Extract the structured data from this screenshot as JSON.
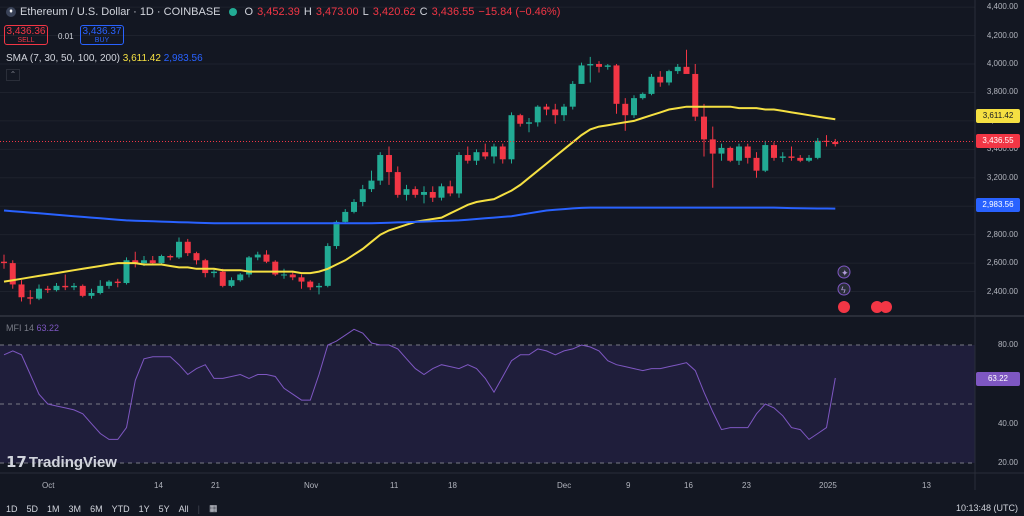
{
  "header": {
    "symbol": "Ethereum / U.S. Dollar · 1D · COINBASE",
    "o_label": "O",
    "o_value": "3,452.39",
    "h_label": "H",
    "h_value": "3,473.00",
    "l_label": "L",
    "l_value": "3,420.62",
    "c_label": "C",
    "c_value": "3,436.55",
    "change": "−15.84 (−0.46%)"
  },
  "trade": {
    "sell_price": "3,436.36",
    "sell_label": "SELL",
    "spread": "0.01",
    "buy_price": "3,436.37",
    "buy_label": "BUY"
  },
  "sma_legend": {
    "label": "SMA (7, 30, 50, 100, 200)",
    "v1": "3,611.42",
    "v2": "2,983.56"
  },
  "mfi_legend": {
    "label": "MFI 14",
    "value": "63.22"
  },
  "price_axis": [
    "4,400.00",
    "4,200.00",
    "4,000.00",
    "3,800.00",
    "3,600.00",
    "3,400.00",
    "3,200.00",
    "3,000.00",
    "2,800.00",
    "2,600.00",
    "2,400.00"
  ],
  "price_labels": {
    "sma_yellow": "3,611.42",
    "last": "3,436.55",
    "sma_blue": "2,983.56"
  },
  "mfi_axis": [
    "80.00",
    "60.00",
    "40.00",
    "20.00"
  ],
  "mfi_label": "63.22",
  "x_axis": [
    "Oct",
    "14",
    "21",
    "Nov",
    "11",
    "18",
    "Dec",
    "9",
    "16",
    "23",
    "2025",
    "13"
  ],
  "timeframes": [
    "1D",
    "5D",
    "1M",
    "3M",
    "6M",
    "YTD",
    "1Y",
    "5Y",
    "All"
  ],
  "clock": "10:13:48 (UTC)",
  "brand": "TradingView",
  "colors": {
    "up": "#22ab94",
    "down": "#f23645",
    "sma_yellow": "#f5e042",
    "sma_blue": "#2962ff",
    "mfi": "#7e57c2",
    "bg": "#131722"
  },
  "chart_data": [
    {
      "type": "candlestick",
      "title": "Ethereum / U.S. Dollar · 1D · COINBASE",
      "x": [
        "Sep 30",
        "Oct 1",
        "Oct 2",
        "Oct 3",
        "Oct 4",
        "Oct 5",
        "Oct 6",
        "Oct 7",
        "Oct 8",
        "Oct 9",
        "Oct 10",
        "Oct 11",
        "Oct 12",
        "Oct 13",
        "Oct 14",
        "Oct 15",
        "Oct 16",
        "Oct 17",
        "Oct 18",
        "Oct 19",
        "Oct 20",
        "Oct 21",
        "Oct 22",
        "Oct 23",
        "Oct 24",
        "Oct 25",
        "Oct 26",
        "Oct 27",
        "Oct 28",
        "Oct 29",
        "Oct 30",
        "Oct 31",
        "Nov 1",
        "Nov 2",
        "Nov 3",
        "Nov 4",
        "Nov 5",
        "Nov 6",
        "Nov 7",
        "Nov 8",
        "Nov 9",
        "Nov 10",
        "Nov 11",
        "Nov 12",
        "Nov 13",
        "Nov 14",
        "Nov 15",
        "Nov 16",
        "Nov 17",
        "Nov 18",
        "Nov 19",
        "Nov 20",
        "Nov 21",
        "Nov 22",
        "Nov 23",
        "Nov 24",
        "Nov 25",
        "Nov 26",
        "Nov 27",
        "Nov 28",
        "Nov 29",
        "Nov 30",
        "Dec 1",
        "Dec 2",
        "Dec 3",
        "Dec 4",
        "Dec 5",
        "Dec 6",
        "Dec 7",
        "Dec 8",
        "Dec 9",
        "Dec 10",
        "Dec 11",
        "Dec 12",
        "Dec 13",
        "Dec 14",
        "Dec 15",
        "Dec 16",
        "Dec 17",
        "Dec 18",
        "Dec 19",
        "Dec 20",
        "Dec 21",
        "Dec 22",
        "Dec 23",
        "Dec 24",
        "Dec 25",
        "Dec 26",
        "Dec 27",
        "Dec 28",
        "Dec 29",
        "Dec 30",
        "Dec 31",
        "Jan 1",
        "Jan 2",
        "Jan 3"
      ],
      "ohlc": [
        [
          2610,
          2660,
          2560,
          2600
        ],
        [
          2600,
          2620,
          2420,
          2450
        ],
        [
          2450,
          2480,
          2330,
          2360
        ],
        [
          2360,
          2410,
          2310,
          2350
        ],
        [
          2350,
          2450,
          2340,
          2420
        ],
        [
          2420,
          2440,
          2390,
          2410
        ],
        [
          2410,
          2460,
          2400,
          2440
        ],
        [
          2440,
          2520,
          2410,
          2430
        ],
        [
          2430,
          2460,
          2410,
          2440
        ],
        [
          2440,
          2450,
          2360,
          2370
        ],
        [
          2370,
          2420,
          2350,
          2390
        ],
        [
          2390,
          2480,
          2380,
          2440
        ],
        [
          2440,
          2480,
          2420,
          2470
        ],
        [
          2470,
          2490,
          2430,
          2460
        ],
        [
          2460,
          2640,
          2450,
          2620
        ],
        [
          2620,
          2680,
          2570,
          2600
        ],
        [
          2600,
          2650,
          2580,
          2620
        ],
        [
          2620,
          2650,
          2590,
          2600
        ],
        [
          2600,
          2660,
          2590,
          2650
        ],
        [
          2650,
          2660,
          2620,
          2640
        ],
        [
          2640,
          2780,
          2630,
          2750
        ],
        [
          2750,
          2770,
          2650,
          2670
        ],
        [
          2670,
          2680,
          2590,
          2620
        ],
        [
          2620,
          2630,
          2500,
          2530
        ],
        [
          2530,
          2560,
          2500,
          2540
        ],
        [
          2540,
          2560,
          2430,
          2440
        ],
        [
          2440,
          2500,
          2430,
          2480
        ],
        [
          2480,
          2530,
          2470,
          2520
        ],
        [
          2520,
          2650,
          2500,
          2640
        ],
        [
          2640,
          2680,
          2620,
          2660
        ],
        [
          2660,
          2690,
          2600,
          2610
        ],
        [
          2610,
          2620,
          2510,
          2520
        ],
        [
          2520,
          2560,
          2490,
          2520
        ],
        [
          2520,
          2540,
          2480,
          2500
        ],
        [
          2500,
          2520,
          2420,
          2470
        ],
        [
          2470,
          2480,
          2410,
          2430
        ],
        [
          2430,
          2460,
          2380,
          2440
        ],
        [
          2440,
          2740,
          2430,
          2720
        ],
        [
          2720,
          2900,
          2700,
          2890
        ],
        [
          2890,
          2980,
          2880,
          2960
        ],
        [
          2960,
          3050,
          2950,
          3030
        ],
        [
          3030,
          3150,
          3000,
          3120
        ],
        [
          3120,
          3250,
          3100,
          3180
        ],
        [
          3180,
          3380,
          3150,
          3360
        ],
        [
          3360,
          3420,
          3150,
          3240
        ],
        [
          3240,
          3280,
          3060,
          3080
        ],
        [
          3080,
          3150,
          3040,
          3120
        ],
        [
          3120,
          3140,
          3060,
          3080
        ],
        [
          3080,
          3140,
          3020,
          3100
        ],
        [
          3100,
          3140,
          3030,
          3060
        ],
        [
          3060,
          3160,
          3040,
          3140
        ],
        [
          3140,
          3180,
          3070,
          3090
        ],
        [
          3090,
          3380,
          3060,
          3360
        ],
        [
          3360,
          3420,
          3300,
          3320
        ],
        [
          3320,
          3400,
          3290,
          3380
        ],
        [
          3380,
          3440,
          3330,
          3350
        ],
        [
          3350,
          3440,
          3300,
          3420
        ],
        [
          3420,
          3440,
          3300,
          3330
        ],
        [
          3330,
          3660,
          3300,
          3640
        ],
        [
          3640,
          3650,
          3560,
          3580
        ],
        [
          3580,
          3620,
          3520,
          3590
        ],
        [
          3590,
          3710,
          3560,
          3700
        ],
        [
          3700,
          3720,
          3640,
          3680
        ],
        [
          3680,
          3720,
          3580,
          3640
        ],
        [
          3640,
          3720,
          3600,
          3700
        ],
        [
          3700,
          3880,
          3680,
          3860
        ],
        [
          3860,
          4010,
          3860,
          3990
        ],
        [
          3990,
          4050,
          3870,
          4000
        ],
        [
          4000,
          4020,
          3940,
          3980
        ],
        [
          3980,
          4000,
          3960,
          3990
        ],
        [
          3990,
          4000,
          3650,
          3720
        ],
        [
          3720,
          3760,
          3530,
          3640
        ],
        [
          3640,
          3780,
          3620,
          3760
        ],
        [
          3760,
          3800,
          3750,
          3790
        ],
        [
          3790,
          3930,
          3780,
          3910
        ],
        [
          3910,
          3950,
          3840,
          3870
        ],
        [
          3870,
          3960,
          3850,
          3950
        ],
        [
          3950,
          4000,
          3930,
          3980
        ],
        [
          3980,
          4100,
          3940,
          3930
        ],
        [
          3930,
          4000,
          3600,
          3630
        ],
        [
          3630,
          3720,
          3350,
          3470
        ],
        [
          3470,
          3560,
          3130,
          3370
        ],
        [
          3370,
          3440,
          3320,
          3410
        ],
        [
          3410,
          3420,
          3310,
          3320
        ],
        [
          3320,
          3440,
          3290,
          3420
        ],
        [
          3420,
          3440,
          3300,
          3340
        ],
        [
          3340,
          3380,
          3200,
          3250
        ],
        [
          3250,
          3460,
          3240,
          3430
        ],
        [
          3430,
          3450,
          3320,
          3340
        ],
        [
          3340,
          3380,
          3310,
          3350
        ],
        [
          3350,
          3420,
          3320,
          3340
        ],
        [
          3340,
          3360,
          3310,
          3320
        ],
        [
          3320,
          3360,
          3310,
          3340
        ],
        [
          3340,
          3480,
          3330,
          3460
        ],
        [
          3460,
          3500,
          3420,
          3452
        ],
        [
          3452,
          3473,
          3420,
          3437
        ]
      ],
      "ylim": [
        2200,
        4450
      ],
      "series": [
        {
          "name": "SMA",
          "values": [
            2470,
            2480,
            2490,
            2500,
            2510,
            2520,
            2530,
            2540,
            2550,
            2560,
            2570,
            2580,
            2590,
            2600,
            2600,
            2600,
            2590,
            2590,
            2590,
            2580,
            2570,
            2570,
            2560,
            2560,
            2560,
            2550,
            2550,
            2550,
            2540,
            2540,
            2540,
            2540,
            2540,
            2540,
            2530,
            2530,
            2540,
            2560,
            2590,
            2620,
            2660,
            2700,
            2750,
            2800,
            2830,
            2850,
            2870,
            2890,
            2900,
            2910,
            2920,
            2950,
            2980,
            3010,
            3030,
            3040,
            3050,
            3080,
            3110,
            3150,
            3200,
            3250,
            3300,
            3350,
            3400,
            3450,
            3500,
            3540,
            3560,
            3570,
            3580,
            3590,
            3600,
            3620,
            3640,
            3660,
            3680,
            3690,
            3700,
            3700,
            3700,
            3700,
            3700,
            3700,
            3690,
            3690,
            3690,
            3680,
            3680,
            3670,
            3660,
            3650,
            3640,
            3630,
            3620,
            3611.42
          ]
        },
        {
          "name": "SMA",
          "values": [
            2970,
            2965,
            2960,
            2955,
            2950,
            2945,
            2940,
            2935,
            2930,
            2925,
            2920,
            2915,
            2910,
            2905,
            2900,
            2898,
            2896,
            2894,
            2892,
            2890,
            2888,
            2886,
            2884,
            2882,
            2880,
            2880,
            2880,
            2880,
            2880,
            2880,
            2880,
            2880,
            2880,
            2880,
            2880,
            2880,
            2880,
            2880,
            2880,
            2880,
            2880,
            2880,
            2880,
            2882,
            2884,
            2886,
            2888,
            2890,
            2892,
            2894,
            2896,
            2898,
            2900,
            2905,
            2910,
            2915,
            2920,
            2925,
            2930,
            2940,
            2950,
            2960,
            2970,
            2975,
            2980,
            2985,
            2988,
            2990,
            2990,
            2990,
            2990,
            2990,
            2990,
            2990,
            2990,
            2990,
            2990,
            2990,
            2990,
            2990,
            2990,
            2990,
            2990,
            2990,
            2990,
            2990,
            2990,
            2990,
            2990,
            2988,
            2987,
            2986,
            2985,
            2984,
            2984,
            2983.56
          ]
        }
      ]
    },
    {
      "type": "line",
      "title": "MFI 14",
      "series": [
        {
          "name": "MFI 14",
          "values": [
            75,
            77,
            75,
            65,
            55,
            50,
            49,
            48,
            47,
            45,
            40,
            35,
            32,
            32,
            38,
            62,
            73,
            74,
            74,
            74,
            70,
            65,
            68,
            70,
            63,
            63,
            64,
            65,
            63,
            65,
            65,
            64,
            58,
            55,
            52,
            52,
            65,
            80,
            82,
            85,
            88,
            86,
            81,
            80,
            80,
            78,
            73,
            68,
            65,
            68,
            70,
            69,
            68,
            70,
            68,
            63,
            56,
            64,
            72,
            75,
            75,
            78,
            77,
            75,
            77,
            78,
            80,
            79,
            77,
            72,
            70,
            69,
            68,
            67,
            68,
            68,
            69,
            70,
            71,
            67,
            56,
            46,
            37,
            38,
            38,
            38,
            45,
            50,
            48,
            44,
            38,
            37,
            32,
            35,
            38,
            63.22
          ]
        }
      ],
      "ylim": [
        15,
        95
      ]
    }
  ]
}
